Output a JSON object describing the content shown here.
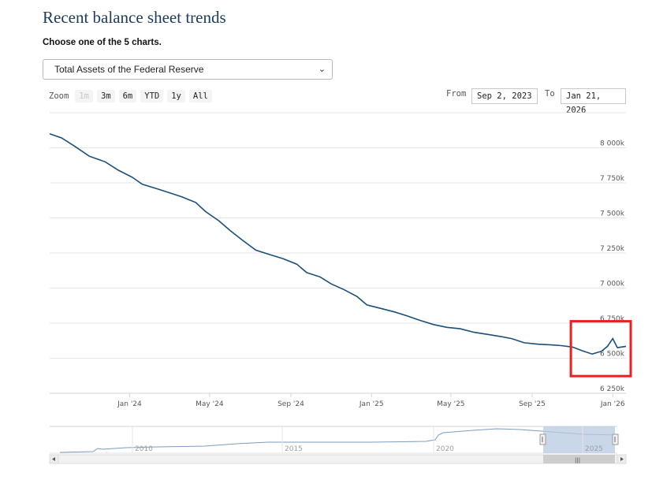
{
  "page": {
    "title": "Recent balance sheet trends",
    "subtitle": "Choose one of the 5 charts."
  },
  "selector": {
    "value": "Total Assets of the Federal Reserve",
    "icon": "chevron-down-icon"
  },
  "toolbar": {
    "zoom_label": "Zoom",
    "buttons": [
      "1m",
      "3m",
      "6m",
      "YTD",
      "1y",
      "All"
    ],
    "disabled": [
      "1m"
    ],
    "from_label": "From",
    "from_value": "Sep 2, 2023",
    "to_label": "To",
    "to_value": "Jan 21, 2026"
  },
  "chart_data": {
    "type": "line",
    "series": [
      {
        "color": "#1a4f7a",
        "points": [
          [
            "2023-09-02",
            8100
          ],
          [
            "2023-09-20",
            8070
          ],
          [
            "2023-10-10",
            8010
          ],
          [
            "2023-11-01",
            7940
          ],
          [
            "2023-11-25",
            7900
          ],
          [
            "2023-12-15",
            7840
          ],
          [
            "2024-01-05",
            7790
          ],
          [
            "2024-01-20",
            7740
          ],
          [
            "2024-02-10",
            7710
          ],
          [
            "2024-03-01",
            7680
          ],
          [
            "2024-03-20",
            7650
          ],
          [
            "2024-04-10",
            7610
          ],
          [
            "2024-04-25",
            7545
          ],
          [
            "2024-05-15",
            7480
          ],
          [
            "2024-06-01",
            7410
          ],
          [
            "2024-06-20",
            7340
          ],
          [
            "2024-07-10",
            7270
          ],
          [
            "2024-07-30",
            7240
          ],
          [
            "2024-08-20",
            7210
          ],
          [
            "2024-09-10",
            7170
          ],
          [
            "2024-09-25",
            7110
          ],
          [
            "2024-10-15",
            7080
          ],
          [
            "2024-11-01",
            7030
          ],
          [
            "2024-11-20",
            6990
          ],
          [
            "2024-12-10",
            6940
          ],
          [
            "2024-12-25",
            6880
          ],
          [
            "2025-01-15",
            6855
          ],
          [
            "2025-02-05",
            6830
          ],
          [
            "2025-02-25",
            6800
          ],
          [
            "2025-03-15",
            6770
          ],
          [
            "2025-04-05",
            6740
          ],
          [
            "2025-04-25",
            6720
          ],
          [
            "2025-05-15",
            6710
          ],
          [
            "2025-06-05",
            6685
          ],
          [
            "2025-06-25",
            6670
          ],
          [
            "2025-07-15",
            6655
          ],
          [
            "2025-08-01",
            6640
          ],
          [
            "2025-08-20",
            6610
          ],
          [
            "2025-09-10",
            6600
          ],
          [
            "2025-09-30",
            6595
          ],
          [
            "2025-10-15",
            6590
          ],
          [
            "2025-11-01",
            6580
          ],
          [
            "2025-11-15",
            6555
          ],
          [
            "2025-12-01",
            6530
          ],
          [
            "2025-12-15",
            6550
          ],
          [
            "2025-12-24",
            6585
          ],
          [
            "2026-01-01",
            6640
          ],
          [
            "2026-01-08",
            6575
          ],
          [
            "2026-01-21",
            6585
          ]
        ]
      }
    ],
    "x_ticks": [
      "Jan '24",
      "May '24",
      "Sep '24",
      "Jan '25",
      "May '25",
      "Sep '25",
      "Jan '26"
    ],
    "x_tick_dates": [
      "2024-01-01",
      "2024-05-01",
      "2024-09-01",
      "2025-01-01",
      "2025-05-01",
      "2025-09-01",
      "2026-01-01"
    ],
    "xlim": [
      "2023-09-02",
      "2026-01-21"
    ],
    "y_ticks": [
      6250,
      6500,
      6750,
      7000,
      7250,
      7500,
      7750,
      8000
    ],
    "y_tick_labels": [
      "6 250k",
      "6 500k",
      "6 750k",
      "7 000k",
      "7 250k",
      "7 500k",
      "7 750k",
      "8 000k"
    ],
    "ylim": [
      6250,
      8250
    ],
    "grid": true,
    "highlight": {
      "from": "2025-11-01",
      "to": "2026-01-21",
      "color": "#e8201f"
    }
  },
  "navigator": {
    "ticks": [
      "2010",
      "2015",
      "2020",
      "2025"
    ],
    "scroll_left_icon": "arrow-left-icon",
    "scroll_right_icon": "arrow-right-icon",
    "grip_icon": "grip-icon"
  }
}
